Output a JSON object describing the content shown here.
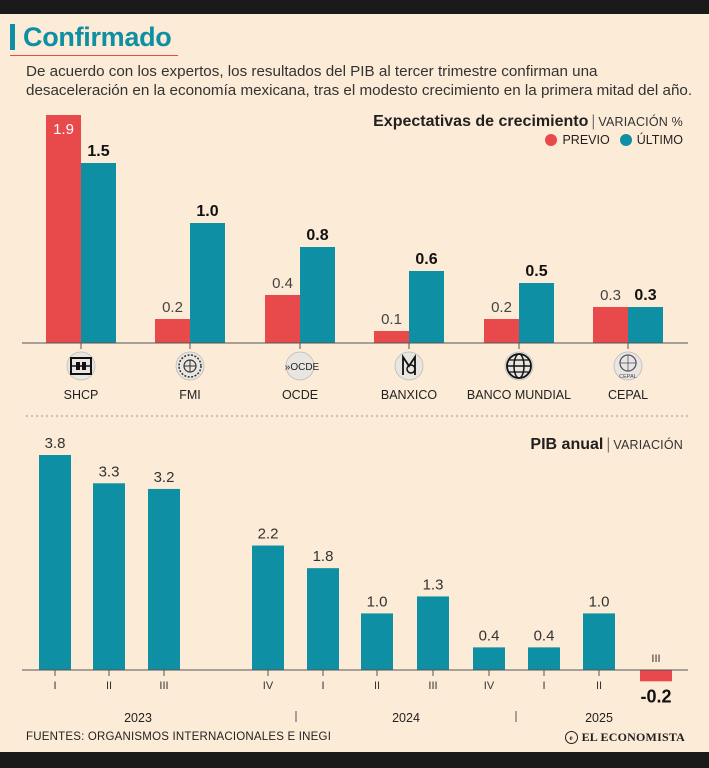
{
  "title": "Confirmado",
  "subtitle": "De acuerdo con los expertos, los resultados del PIB al tercer trimestre confirman una desaceleración en la economía mexicana, tras el modesto crecimiento en la primera mitad del año.",
  "colors": {
    "previo": "#e8494a",
    "ultimo": "#0e8fa4",
    "negative": "#e8494a"
  },
  "chart_data": [
    {
      "type": "bar",
      "title": "Expectativas de crecimiento",
      "unit": "VARIACIÓN %",
      "categories": [
        "SHCP",
        "FMI",
        "OCDE",
        "BANXICO",
        "BANCO MUNDIAL",
        "CEPAL"
      ],
      "category_icons": [
        "shcp-logo-icon",
        "fmi-logo-icon",
        "ocde-logo-icon",
        "banxico-logo-icon",
        "world-bank-globe-icon",
        "cepal-logo-icon"
      ],
      "ocde_logo_text": "OCDE",
      "cepal_logo_text": "CEPAL",
      "series": [
        {
          "name": "PREVIO",
          "values": [
            1.9,
            0.2,
            0.4,
            0.1,
            0.2,
            0.3
          ],
          "labels": [
            "1.9",
            "0.2",
            "0.4",
            "0.1",
            "0.2",
            "0.3"
          ]
        },
        {
          "name": "ÚLTIMO",
          "values": [
            1.5,
            1.0,
            0.8,
            0.6,
            0.5,
            0.3
          ],
          "labels": [
            "1.5",
            "1.0",
            "0.8",
            "0.6",
            "0.5",
            "0.3"
          ]
        }
      ],
      "ylim": [
        0,
        2.0
      ],
      "legend": "top-right"
    },
    {
      "type": "bar",
      "title": "PIB anual",
      "unit": "VARIACIÓN",
      "quarters": [
        "I",
        "II",
        "III",
        "IV",
        "I",
        "II",
        "III",
        "IV",
        "I",
        "II",
        "III"
      ],
      "values": [
        3.8,
        3.3,
        3.2,
        2.2,
        1.8,
        1.0,
        1.3,
        0.4,
        0.4,
        1.0,
        -0.2
      ],
      "labels": [
        "3.8",
        "3.3",
        "3.2",
        "2.2",
        "1.8",
        "1.0",
        "1.3",
        "0.4",
        "0.4",
        "1.0",
        "-0.2"
      ],
      "years": [
        "2023",
        "2024",
        "2025"
      ],
      "ylim": [
        -0.4,
        4.0
      ]
    }
  ],
  "footer": {
    "sources": "FUENTES: ORGANISMOS INTERNACIONALES E INEGI",
    "brand": "EL ECONOMISTA"
  }
}
